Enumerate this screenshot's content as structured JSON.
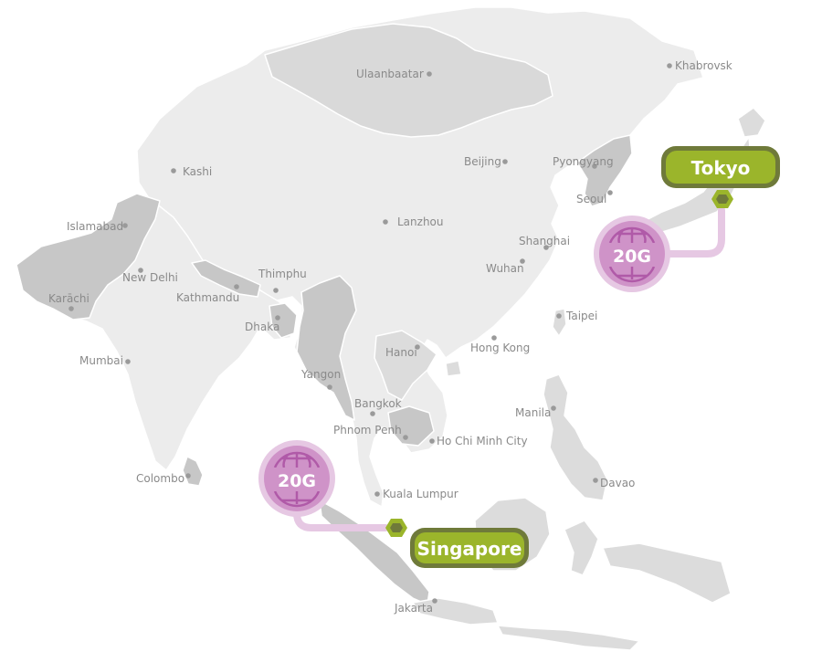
{
  "map": {
    "colors": {
      "land": "#ececec",
      "highlight": "#c7c7c7",
      "border": "#ffffff",
      "city_dot": "#9a9a9a",
      "city_text": "#8a8a8a",
      "accent_green": "#9bb52b",
      "accent_green_dark": "#6f7a3a",
      "accent_purple": "#cf93c8",
      "accent_purple_light": "#e6c8e3",
      "globe": "#b05aa8"
    },
    "cities": [
      {
        "name": "Ulaanbaatar"
      },
      {
        "name": "Khabrovsk"
      },
      {
        "name": "Kashi"
      },
      {
        "name": "Beijing"
      },
      {
        "name": "Pyongyang"
      },
      {
        "name": "Seoul"
      },
      {
        "name": "Islamabad"
      },
      {
        "name": "Lanzhou"
      },
      {
        "name": "Shanghai"
      },
      {
        "name": "Wuhan"
      },
      {
        "name": "New Delhi"
      },
      {
        "name": "Karāchi"
      },
      {
        "name": "Thimphu"
      },
      {
        "name": "Kathmandu"
      },
      {
        "name": "Dhaka"
      },
      {
        "name": "Taipei"
      },
      {
        "name": "Hanoi"
      },
      {
        "name": "Hong Kong"
      },
      {
        "name": "Mumbai"
      },
      {
        "name": "Yangon"
      },
      {
        "name": "Bangkok"
      },
      {
        "name": "Manila"
      },
      {
        "name": "Phnom Penh"
      },
      {
        "name": "Ho Chi Minh City"
      },
      {
        "name": "Colombo"
      },
      {
        "name": "Davao"
      },
      {
        "name": "Kuala Lumpur"
      },
      {
        "name": "Jakarta"
      }
    ],
    "routes": [
      {
        "city": "Tokyo",
        "capacity": "20G",
        "icon": "globe-icon",
        "marker": "hexagon-icon"
      },
      {
        "city": "Singapore",
        "capacity": "20G",
        "icon": "globe-icon",
        "marker": "hexagon-icon"
      }
    ]
  }
}
